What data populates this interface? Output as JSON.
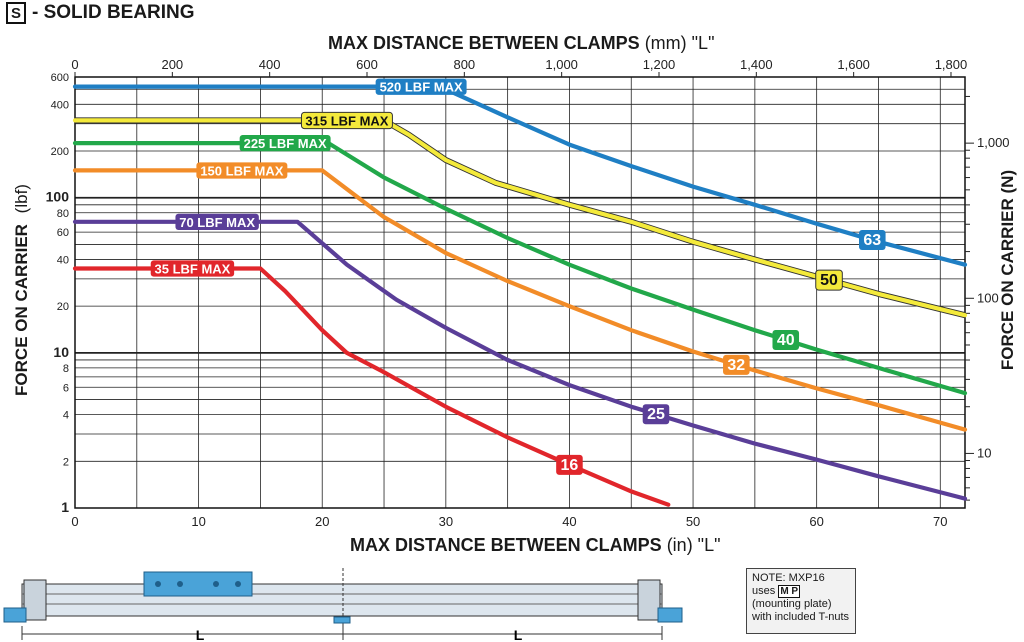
{
  "header": {
    "letter": "S",
    "title": "- SOLID BEARING"
  },
  "chart_data": {
    "type": "line",
    "title": "",
    "x_top_label": {
      "bold": "MAX DISTANCE BETWEEN CLAMPS",
      "unit": "(mm) \"L\""
    },
    "x_bottom_label": {
      "bold": "MAX DISTANCE BETWEEN CLAMPS",
      "unit": "(in) \"L\""
    },
    "y_left_label": {
      "bold": "FORCE ON CARRIER",
      "unit": "(lbf)"
    },
    "y_right_label": "FORCE ON CARRIER (N)",
    "x_in_range": [
      0,
      72
    ],
    "y_lbf_range": [
      1,
      600
    ],
    "y_scale": "log",
    "x_in_ticks": [
      0,
      10,
      20,
      30,
      40,
      50,
      60,
      70
    ],
    "x_mm_ticks": [
      {
        "v": 0,
        "t": "0"
      },
      {
        "v": 200,
        "t": "200"
      },
      {
        "v": 400,
        "t": "400"
      },
      {
        "v": 600,
        "t": "600"
      },
      {
        "v": 800,
        "t": "800"
      },
      {
        "v": 1000,
        "t": "1,000"
      },
      {
        "v": 1200,
        "t": "1,200"
      },
      {
        "v": 1400,
        "t": "1,400"
      },
      {
        "v": 1600,
        "t": "1,600"
      },
      {
        "v": 1800,
        "t": "1,800"
      }
    ],
    "y_lbf_ticks": [
      {
        "v": 1,
        "t": "1"
      },
      {
        "v": 2,
        "t": "2"
      },
      {
        "v": 4,
        "t": "4"
      },
      {
        "v": 6,
        "t": "6"
      },
      {
        "v": 8,
        "t": "8"
      },
      {
        "v": 10,
        "t": "10"
      },
      {
        "v": 20,
        "t": "20"
      },
      {
        "v": 40,
        "t": "40"
      },
      {
        "v": 60,
        "t": "60"
      },
      {
        "v": 80,
        "t": "80"
      },
      {
        "v": 100,
        "t": "100"
      },
      {
        "v": 200,
        "t": "200"
      },
      {
        "v": 400,
        "t": "400"
      },
      {
        "v": 600,
        "t": "600"
      }
    ],
    "y_n_ticks": [
      {
        "v": 10,
        "t": "10"
      },
      {
        "v": 100,
        "t": "100"
      },
      {
        "v": 1000,
        "t": "1,000"
      }
    ],
    "grid": true,
    "series": [
      {
        "name": "63",
        "color": "#1f7fc4",
        "cap_label": "520 LBF MAX",
        "x": [
          0,
          29.5,
          35,
          40,
          45,
          50,
          55,
          60,
          65,
          72
        ],
        "y": [
          520,
          520,
          330,
          220,
          160,
          118,
          90,
          68,
          52,
          37
        ]
      },
      {
        "name": "50",
        "color": "#f4ea3b",
        "cap_label": "315 LBF MAX",
        "x": [
          0,
          25,
          27,
          30,
          34,
          40,
          45,
          50,
          55,
          60,
          65,
          72
        ],
        "y": [
          315,
          315,
          255,
          175,
          125,
          90,
          70,
          52,
          40,
          31,
          24,
          17.5
        ]
      },
      {
        "name": "40",
        "color": "#22a84a",
        "cap_label": "225 LBF MAX",
        "x": [
          0,
          20.5,
          25,
          30,
          35,
          40,
          45,
          50,
          55,
          60,
          65,
          72
        ],
        "y": [
          225,
          225,
          135,
          85,
          55,
          37,
          26,
          19,
          14,
          10.5,
          8,
          5.5
        ]
      },
      {
        "name": "32",
        "color": "#f28c28",
        "cap_label": "150 LBF MAX",
        "x": [
          0,
          20,
          25,
          30,
          35,
          40,
          45,
          50,
          55,
          60,
          65,
          72
        ],
        "y": [
          150,
          150,
          75,
          44,
          29,
          20,
          14,
          10.2,
          7.7,
          5.9,
          4.6,
          3.2
        ]
      },
      {
        "name": "25",
        "color": "#5a3e98",
        "cap_label": "70 LBF MAX",
        "x": [
          0,
          18,
          22,
          26,
          30,
          35,
          40,
          45,
          50,
          55,
          60,
          65,
          72
        ],
        "y": [
          70,
          70,
          37,
          22,
          14.5,
          9,
          6.2,
          4.5,
          3.4,
          2.6,
          2.05,
          1.6,
          1.15
        ]
      },
      {
        "name": "16",
        "color": "#e1262b",
        "cap_label": "35 LBF MAX",
        "x": [
          0,
          15,
          17,
          20,
          22,
          25,
          30,
          35,
          40,
          45,
          48
        ],
        "y": [
          35,
          35,
          25,
          14,
          10,
          7.5,
          4.5,
          2.85,
          1.9,
          1.28,
          1.05
        ]
      }
    ]
  },
  "note": {
    "line1": "NOTE: MXP16",
    "line2": "uses",
    "badge": "M P",
    "line3": "(mounting plate)",
    "line4": "with included T-nuts"
  },
  "diagram": {
    "dim_label_left": "L",
    "dim_label_right": "L"
  }
}
